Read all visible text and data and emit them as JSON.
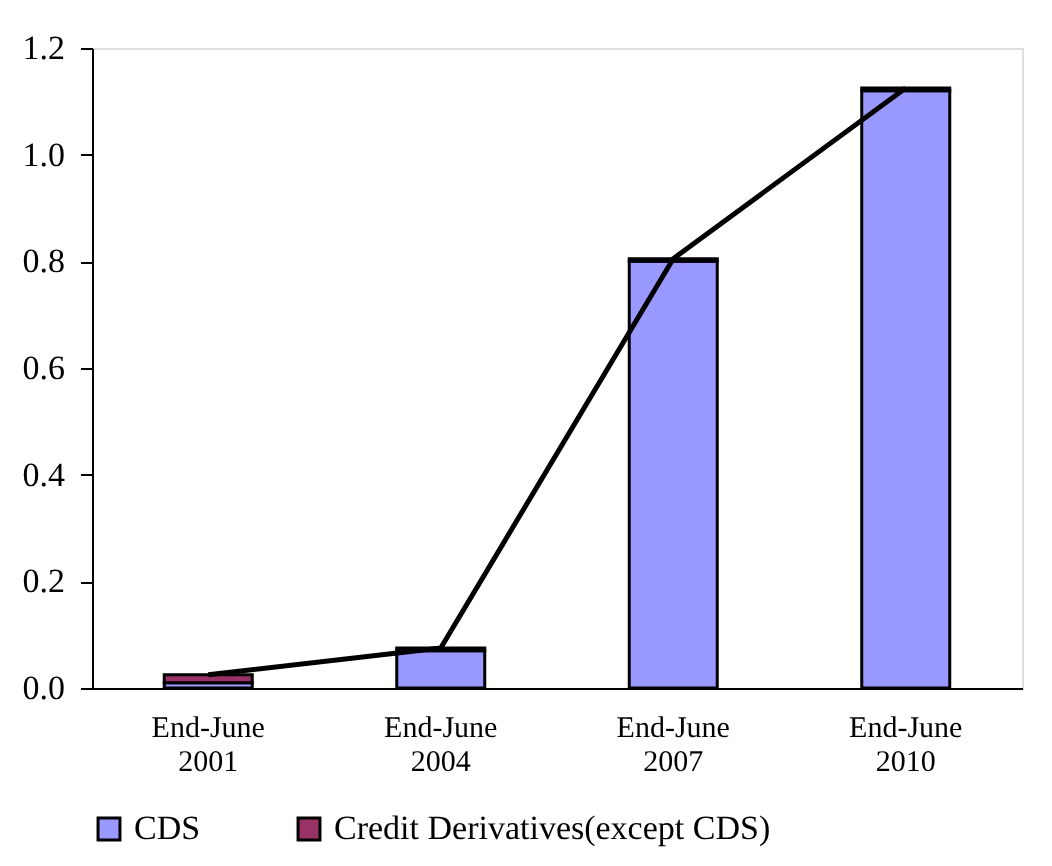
{
  "chart_data": {
    "type": "bar",
    "stacked": true,
    "categories": [
      "End-June 2001",
      "End-June 2004",
      "End-June 2007",
      "End-June 2010"
    ],
    "series": [
      {
        "name": "CDS",
        "color": "#9999ff",
        "values": [
          0.01,
          0.07,
          0.8,
          1.12
        ]
      },
      {
        "name": "Credit Derivatives(except CDS)",
        "color": "#993366",
        "values": [
          0.015,
          0.005,
          0.005,
          0.005
        ]
      },
      {
        "type": "line",
        "color": "#000000",
        "values": [
          0.025,
          0.075,
          0.805,
          1.125
        ]
      }
    ],
    "ylim": [
      0,
      1.2
    ],
    "yticks": [
      {
        "value": 0,
        "label": "0.0"
      },
      0.2,
      0.4,
      0.6,
      0.8,
      {
        "value": 1,
        "label": "1.0"
      },
      1.2
    ],
    "grid": false,
    "legend": "bottom"
  }
}
